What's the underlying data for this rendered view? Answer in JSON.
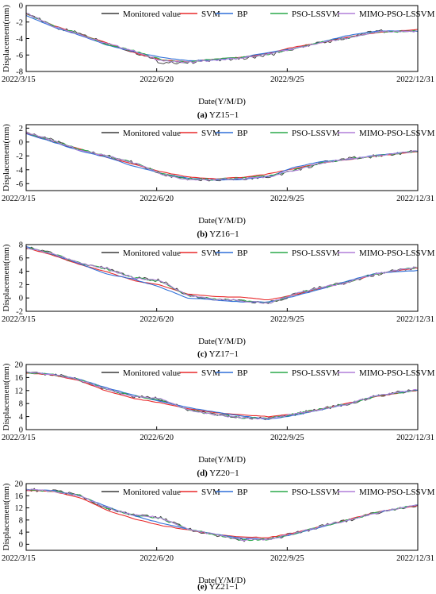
{
  "chart_data": [
    {
      "type": "line",
      "xlabel": "Date(Y/M/D)",
      "ylabel": "Displacement(mm)",
      "caption_letter": "(a)",
      "caption_name": "YZ15−1",
      "x_ticks": [
        "2022/3/15",
        "2022/6/20",
        "2022/9/25",
        "2022/12/31"
      ],
      "ylim": [
        -8,
        0
      ],
      "y_ticks": [
        -8,
        -6,
        -4,
        -2,
        0
      ],
      "legend": [
        "Monitored value",
        "SVM",
        "BP",
        "PSO-LSSVM",
        "MIMO-PSO-LSSVM"
      ],
      "x": [
        0,
        20,
        40,
        60,
        80,
        100,
        120,
        140,
        160,
        180,
        200,
        220,
        240,
        260,
        291
      ],
      "series": [
        {
          "name": "Monitored value",
          "values": [
            -0.8,
            -2.6,
            -3.4,
            -4.6,
            -5.6,
            -6.9,
            -6.9,
            -6.6,
            -6.4,
            -6.0,
            -5.2,
            -4.5,
            -3.9,
            -3.1,
            -3.1
          ]
        },
        {
          "name": "SVM",
          "values": [
            -1.0,
            -2.4,
            -3.5,
            -4.5,
            -5.7,
            -6.6,
            -6.8,
            -6.5,
            -6.3,
            -5.8,
            -5.0,
            -4.5,
            -3.8,
            -3.3,
            -2.9
          ]
        },
        {
          "name": "BP",
          "values": [
            -1.2,
            -2.6,
            -3.6,
            -4.8,
            -5.6,
            -6.3,
            -6.7,
            -6.6,
            -6.3,
            -5.7,
            -5.2,
            -4.4,
            -3.6,
            -3.1,
            -3.1
          ]
        },
        {
          "name": "PSO-LSSVM",
          "values": [
            -0.9,
            -2.5,
            -3.4,
            -4.7,
            -5.5,
            -6.6,
            -6.9,
            -6.5,
            -6.3,
            -5.9,
            -5.2,
            -4.4,
            -3.9,
            -3.2,
            -3.1
          ]
        },
        {
          "name": "MIMO-PSO-LSSVM",
          "values": [
            -0.9,
            -2.5,
            -3.5,
            -4.6,
            -5.5,
            -6.7,
            -6.9,
            -6.6,
            -6.4,
            -5.9,
            -5.2,
            -4.5,
            -3.9,
            -3.2,
            -3.1
          ]
        }
      ]
    },
    {
      "type": "line",
      "xlabel": "Date(Y/M/D)",
      "ylabel": "Displacement(mm)",
      "caption_letter": "(b)",
      "caption_name": "YZ16−1",
      "x_ticks": [
        "2022/3/15",
        "2022/6/20",
        "2022/9/25",
        "2022/12/31"
      ],
      "ylim": [
        -7,
        2.5
      ],
      "y_ticks": [
        -6,
        -4,
        -2,
        0,
        2
      ],
      "legend": [
        "Monitored value",
        "SVM",
        "BP",
        "PSO-LSSVM",
        "MIMO-PSO-LSSVM"
      ],
      "x": [
        0,
        20,
        40,
        60,
        80,
        100,
        120,
        140,
        160,
        180,
        200,
        220,
        240,
        260,
        291
      ],
      "series": [
        {
          "name": "Monitored value",
          "values": [
            1.4,
            0.2,
            -1.2,
            -2.0,
            -3.0,
            -4.6,
            -5.4,
            -5.4,
            -5.3,
            -5.0,
            -4.1,
            -3.0,
            -2.4,
            -2.0,
            -1.3
          ]
        },
        {
          "name": "SVM",
          "values": [
            1.3,
            0.0,
            -1.0,
            -2.2,
            -3.2,
            -4.3,
            -5.0,
            -5.3,
            -5.1,
            -4.6,
            -3.8,
            -3.0,
            -2.5,
            -2.0,
            -1.4
          ]
        },
        {
          "name": "BP",
          "values": [
            1.2,
            0.0,
            -1.3,
            -2.2,
            -3.5,
            -4.5,
            -5.2,
            -5.5,
            -5.4,
            -5.0,
            -3.6,
            -2.8,
            -2.5,
            -1.9,
            -1.3
          ]
        },
        {
          "name": "PSO-LSSVM",
          "values": [
            1.4,
            0.2,
            -1.1,
            -2.0,
            -3.0,
            -4.5,
            -5.3,
            -5.4,
            -5.2,
            -4.9,
            -4.0,
            -3.0,
            -2.4,
            -2.0,
            -1.3
          ]
        },
        {
          "name": "MIMO-PSO-LSSVM",
          "values": [
            1.4,
            0.2,
            -1.2,
            -2.0,
            -3.0,
            -4.6,
            -5.4,
            -5.4,
            -5.3,
            -5.0,
            -4.1,
            -3.0,
            -2.4,
            -2.0,
            -1.3
          ]
        }
      ]
    },
    {
      "type": "line",
      "xlabel": "Date(Y/M/D)",
      "ylabel": "Displacement(mm)",
      "caption_letter": "(c)",
      "caption_name": "YZ17−1",
      "x_ticks": [
        "2022/3/15",
        "2022/6/20",
        "2022/9/25",
        "2022/12/31"
      ],
      "ylim": [
        -2,
        8
      ],
      "y_ticks": [
        -2,
        0,
        2,
        4,
        6,
        8
      ],
      "legend": [
        "Monitored value",
        "SVM",
        "BP",
        "PSO-LSSVM",
        "MIMO-PSO-LSSVM"
      ],
      "x": [
        0,
        20,
        40,
        60,
        80,
        100,
        120,
        140,
        160,
        180,
        200,
        220,
        240,
        260,
        291
      ],
      "series": [
        {
          "name": "Monitored value",
          "values": [
            7.6,
            6.6,
            5.2,
            4.4,
            3.0,
            2.6,
            0.4,
            -0.2,
            -0.4,
            -0.8,
            0.6,
            1.6,
            2.4,
            3.6,
            4.6
          ]
        },
        {
          "name": "SVM",
          "values": [
            7.5,
            6.4,
            5.0,
            3.9,
            2.6,
            1.9,
            0.6,
            0.2,
            0.1,
            -0.3,
            0.5,
            1.5,
            2.4,
            3.6,
            4.5
          ]
        },
        {
          "name": "BP",
          "values": [
            7.7,
            6.5,
            5.1,
            3.6,
            2.8,
            1.6,
            0.0,
            -0.3,
            -0.6,
            -0.6,
            0.3,
            1.4,
            2.6,
            3.7,
            4.1
          ]
        },
        {
          "name": "PSO-LSSVM",
          "values": [
            7.6,
            6.6,
            5.2,
            4.3,
            3.0,
            2.5,
            0.4,
            -0.2,
            -0.4,
            -0.8,
            0.6,
            1.6,
            2.4,
            3.6,
            4.6
          ]
        },
        {
          "name": "MIMO-PSO-LSSVM",
          "values": [
            7.6,
            6.6,
            5.2,
            4.4,
            3.0,
            2.6,
            0.4,
            -0.2,
            -0.4,
            -0.8,
            0.6,
            1.6,
            2.4,
            3.6,
            4.6
          ]
        }
      ]
    },
    {
      "type": "line",
      "xlabel": "Date(Y/M/D)",
      "ylabel": "Displacement(mm)",
      "caption_letter": "(d)",
      "caption_name": "YZ20−1",
      "x_ticks": [
        "2022/3/15",
        "2022/6/20",
        "2022/9/25",
        "2022/12/31"
      ],
      "ylim": [
        0,
        20
      ],
      "y_ticks": [
        0,
        4,
        8,
        12,
        16,
        20
      ],
      "legend": [
        "Monitored value",
        "SVM",
        "BP",
        "PSO-LSSVM",
        "MIMO-PSO-LSSVM"
      ],
      "x": [
        0,
        20,
        40,
        60,
        80,
        100,
        120,
        140,
        160,
        180,
        200,
        220,
        240,
        260,
        291
      ],
      "series": [
        {
          "name": "Monitored value",
          "values": [
            17.6,
            17.0,
            15.2,
            12.4,
            10.2,
            9.4,
            6.0,
            4.6,
            3.6,
            3.4,
            4.8,
            6.4,
            8.0,
            10.4,
            12.2
          ]
        },
        {
          "name": "SVM",
          "values": [
            17.4,
            16.8,
            15.0,
            11.8,
            9.6,
            8.2,
            6.4,
            5.2,
            4.6,
            4.0,
            4.8,
            6.4,
            8.2,
            10.2,
            12.1
          ]
        },
        {
          "name": "BP",
          "values": [
            17.6,
            17.0,
            15.4,
            12.8,
            10.6,
            8.6,
            6.8,
            5.4,
            4.2,
            3.2,
            4.4,
            6.2,
            8.0,
            10.4,
            12.2
          ]
        },
        {
          "name": "PSO-LSSVM",
          "values": [
            17.6,
            17.0,
            15.2,
            12.4,
            10.2,
            9.3,
            6.0,
            4.6,
            3.7,
            3.4,
            4.8,
            6.4,
            8.0,
            10.4,
            12.2
          ]
        },
        {
          "name": "MIMO-PSO-LSSVM",
          "values": [
            17.6,
            17.0,
            15.2,
            12.4,
            10.2,
            9.4,
            6.0,
            4.6,
            3.6,
            3.4,
            4.8,
            6.4,
            8.0,
            10.4,
            12.2
          ]
        }
      ]
    },
    {
      "type": "line",
      "xlabel": "Date(Y/M/D)",
      "ylabel": "Displacement(mm)",
      "caption_letter": "(e)",
      "caption_name": "YZ21−1",
      "x_ticks": [
        "2022/3/15",
        "2022/6/20",
        "2022/9/25",
        "2022/12/31"
      ],
      "ylim": [
        -2,
        20
      ],
      "y_ticks": [
        0,
        4,
        8,
        12,
        16,
        20
      ],
      "legend": [
        "Monitored value",
        "SVM",
        "BP",
        "PSO-LSSVM",
        "MIMO-PSO-LSSVM"
      ],
      "x": [
        0,
        20,
        40,
        60,
        80,
        100,
        120,
        140,
        160,
        180,
        200,
        220,
        240,
        260,
        291
      ],
      "series": [
        {
          "name": "Monitored value",
          "values": [
            18.0,
            17.6,
            16.0,
            12.0,
            9.6,
            8.8,
            5.0,
            3.2,
            1.4,
            1.6,
            3.6,
            6.0,
            8.0,
            10.4,
            13.0
          ]
        },
        {
          "name": "SVM",
          "values": [
            17.8,
            17.4,
            15.4,
            11.2,
            8.4,
            6.2,
            4.8,
            3.2,
            2.4,
            2.2,
            3.8,
            6.0,
            8.2,
            10.6,
            12.8
          ]
        },
        {
          "name": "BP",
          "values": [
            18.0,
            17.8,
            16.0,
            12.4,
            9.4,
            7.0,
            5.0,
            3.4,
            2.0,
            1.6,
            3.4,
            5.8,
            8.0,
            10.4,
            13.0
          ]
        },
        {
          "name": "PSO-LSSVM",
          "values": [
            18.0,
            17.6,
            16.0,
            12.0,
            9.6,
            8.6,
            5.0,
            3.2,
            1.4,
            1.6,
            3.6,
            6.0,
            8.0,
            10.4,
            13.0
          ]
        },
        {
          "name": "MIMO-PSO-LSSVM",
          "values": [
            18.0,
            17.6,
            16.0,
            12.0,
            9.6,
            8.8,
            5.0,
            3.2,
            1.4,
            1.6,
            3.6,
            6.0,
            8.0,
            10.4,
            13.0
          ]
        }
      ]
    }
  ],
  "colors": {
    "Monitored value": "#3a3a3a",
    "SVM": "#e8292a",
    "BP": "#2f6fd8",
    "PSO-LSSVM": "#2aa84a",
    "MIMO-PSO-LSSVM": "#b07fd8"
  }
}
